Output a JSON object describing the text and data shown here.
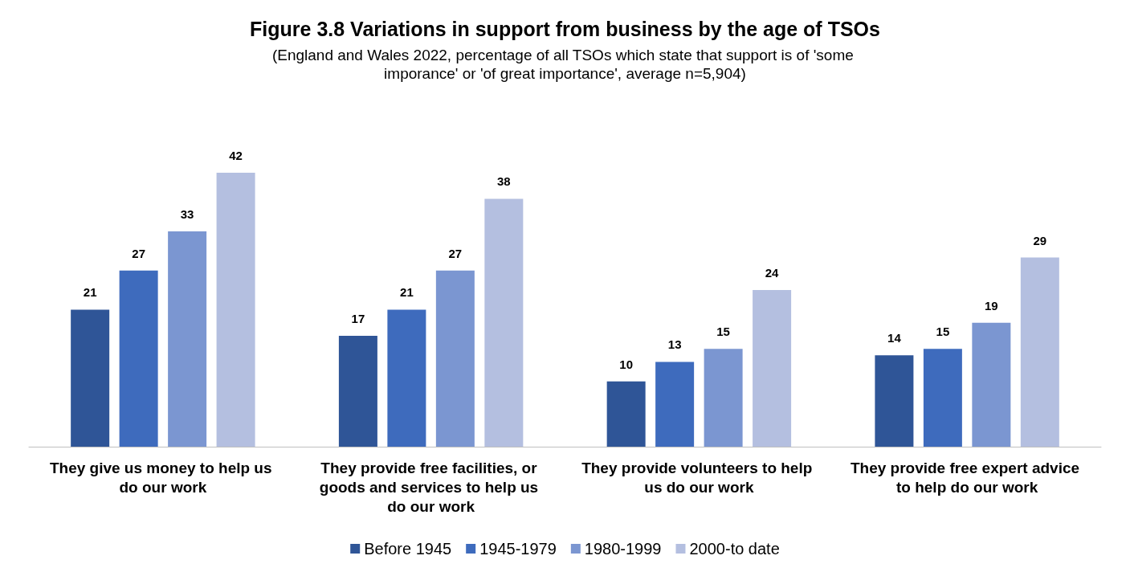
{
  "chart_data": {
    "type": "bar",
    "title": "Figure 3.8 Variations in support from business by the age of TSOs",
    "subtitle": "(England and Wales 2022, percentage of all TSOs which state that support is of 'some imporance' or 'of great importance', average n=5,904)",
    "categories": [
      "They give us money to help us do our work",
      "They provide free facilities, or goods and services to help us do our work",
      "They provide volunteers to help us do our work",
      "They provide free expert advice to help do our work"
    ],
    "series": [
      {
        "name": "Before 1945",
        "color": "#2f5597",
        "values": [
          21,
          17,
          10,
          14
        ]
      },
      {
        "name": "1945-1979",
        "color": "#3e6bbd",
        "values": [
          27,
          21,
          13,
          15
        ]
      },
      {
        "name": "1980-1999",
        "color": "#7b96d1",
        "values": [
          33,
          27,
          15,
          19
        ]
      },
      {
        "name": "2000-to date",
        "color": "#b4bfe0",
        "values": [
          42,
          38,
          24,
          29
        ]
      }
    ],
    "data_labels": true,
    "legend": "bottom",
    "tick_labels": "x"
  }
}
